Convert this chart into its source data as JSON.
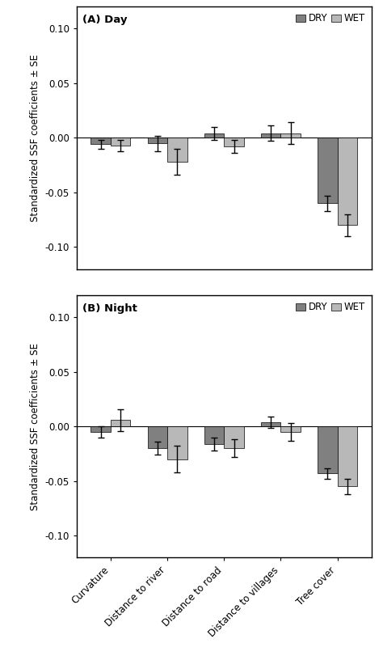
{
  "categories": [
    "Curvature",
    "Distance to river",
    "Distance to road",
    "Distance to villages",
    "Tree cover"
  ],
  "panel_A_title": "(A) Day",
  "panel_B_title": "(B) Night",
  "ylabel": "Standardized SSF coefficients ± SE",
  "ylim": [
    -0.12,
    0.12
  ],
  "yticks": [
    -0.1,
    -0.05,
    0.0,
    0.05,
    0.1
  ],
  "day_dry_values": [
    -0.006,
    -0.005,
    0.004,
    0.004,
    -0.06
  ],
  "day_dry_errors": [
    0.004,
    0.007,
    0.006,
    0.007,
    0.007
  ],
  "day_wet_values": [
    -0.007,
    -0.022,
    -0.008,
    0.004,
    -0.08
  ],
  "day_wet_errors": [
    0.005,
    0.012,
    0.006,
    0.01,
    0.01
  ],
  "night_dry_values": [
    -0.005,
    -0.02,
    -0.016,
    0.004,
    -0.043
  ],
  "night_dry_errors": [
    0.005,
    0.006,
    0.006,
    0.005,
    0.005
  ],
  "night_wet_values": [
    0.006,
    -0.03,
    -0.02,
    -0.005,
    -0.055
  ],
  "night_wet_errors": [
    0.01,
    0.012,
    0.008,
    0.008,
    0.007
  ],
  "color_dry": "#808080",
  "color_wet": "#b8b8b8",
  "bar_width": 0.35,
  "legend_label_dry": "DRY",
  "legend_label_wet": "WET",
  "figsize": [
    4.74,
    8.11
  ],
  "dpi": 100
}
